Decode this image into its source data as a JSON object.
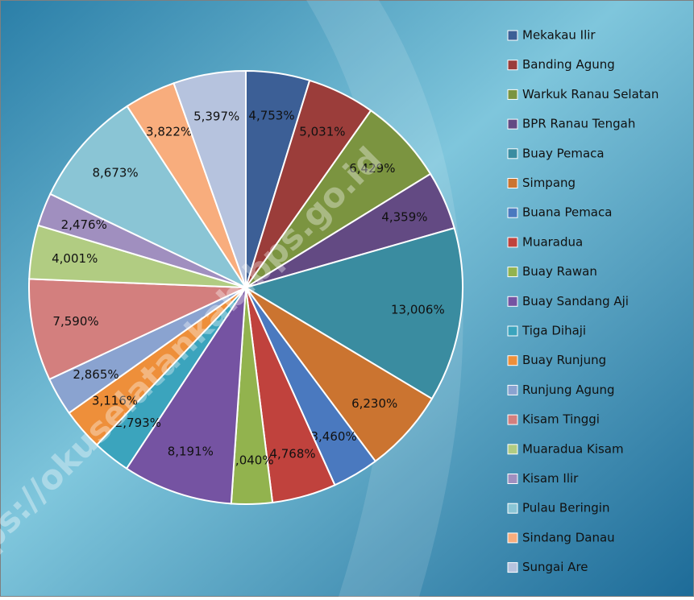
{
  "chart_data": {
    "type": "pie",
    "categories": [
      "Mekakau Ilir",
      "Banding Agung",
      "Warkuk Ranau Selatan",
      "BPR Ranau Tengah",
      "Buay Pemaca",
      "Simpang",
      "Buana Pemaca",
      "Muaradua",
      "Buay Rawan",
      "Buay Sandang Aji",
      "Tiga Dihaji",
      "Buay Runjung",
      "Runjung Agung",
      "Kisam Tinggi",
      "Muaradua Kisam",
      "Kisam Ilir",
      "Pulau Beringin",
      "Sindang Danau",
      "Sungai Are"
    ],
    "values": [
      4.753,
      5.031,
      6.429,
      4.359,
      13.006,
      6.23,
      3.46,
      4.768,
      3.04,
      8.191,
      2.793,
      3.116,
      2.865,
      7.59,
      4.001,
      2.476,
      8.673,
      3.822,
      5.397
    ],
    "value_labels": [
      "4,753%",
      "5,031%",
      "6,429%",
      "4,359%",
      "13,006%",
      "6,230%",
      "3,460%",
      "4,768%",
      "3,040%",
      "8,191%",
      "2,793%",
      "3,116%",
      "2,865%",
      "7,590%",
      "4,001%",
      "2,476%",
      "8,673%",
      "3,822%",
      "5,397%"
    ],
    "colors": [
      "#3c5f96",
      "#9b3d3a",
      "#7b9440",
      "#634a83",
      "#3a8ca0",
      "#cb7430",
      "#4a79bf",
      "#c0423d",
      "#92b34e",
      "#7553a2",
      "#3ba4bd",
      "#ee8f3a",
      "#8aa3d0",
      "#d37f7e",
      "#b1cc82",
      "#a08fbf",
      "#8ac5d5",
      "#f8ad7d",
      "#b6c3de"
    ],
    "legend": "right",
    "watermark": "https://okuselatankab.bps.go.id"
  }
}
